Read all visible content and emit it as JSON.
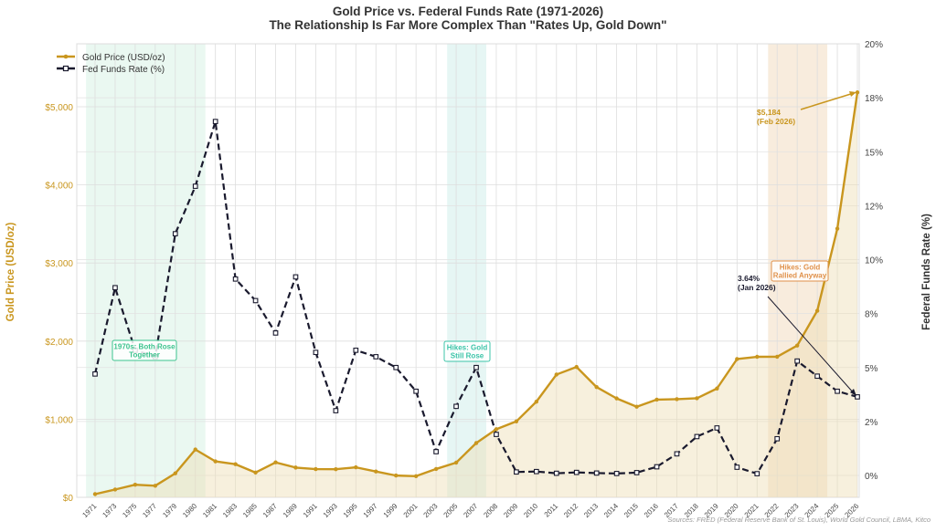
{
  "chart_data": {
    "type": "line",
    "title": "Gold Price vs. Federal Funds Rate (1971-2026)",
    "subtitle": "The Relationship Is Far More Complex Than \"Rates Up, Gold Down\"",
    "xlabel": "",
    "ylabel": "Gold Price (USD/oz)",
    "ylabel_right": "Federal Funds Rate (%)",
    "ylim": [
      0,
      5500
    ],
    "ylim_right": [
      0,
      20
    ],
    "grid": true,
    "legend_position": "upper left",
    "categories": [
      "1971",
      "1973",
      "1975",
      "1977",
      "1979",
      "1980",
      "1981",
      "1983",
      "1985",
      "1987",
      "1989",
      "1991",
      "1993",
      "1995",
      "1997",
      "1999",
      "2001",
      "2003",
      "2005",
      "2007",
      "2008",
      "2009",
      "2010",
      "2011",
      "2012",
      "2013",
      "2014",
      "2015",
      "2016",
      "2017",
      "2018",
      "2019",
      "2020",
      "2021",
      "2022",
      "2023",
      "2024",
      "2025",
      "2026"
    ],
    "series": [
      {
        "name": "Gold Price (USD/oz)",
        "axis": "left",
        "color": "#C9961E",
        "style": "solid",
        "marker": "circle",
        "values": [
          41,
          100,
          161,
          148,
          307,
          612,
          460,
          424,
          317,
          447,
          381,
          362,
          360,
          384,
          331,
          279,
          271,
          363,
          444,
          695,
          872,
          972,
          1225,
          1572,
          1669,
          1411,
          1266,
          1160,
          1251,
          1257,
          1268,
          1393,
          1770,
          1799,
          1800,
          1943,
          2388,
          3440,
          5184
        ]
      },
      {
        "name": "Fed Funds Rate (%)",
        "axis": "right",
        "color": "#1A1A2E",
        "style": "dashed",
        "marker": "square",
        "values": [
          4.7,
          8.7,
          5.8,
          5.5,
          11.2,
          13.4,
          16.4,
          9.1,
          8.1,
          6.6,
          9.2,
          5.7,
          3.0,
          5.8,
          5.5,
          5.0,
          3.9,
          1.1,
          3.2,
          5.0,
          1.9,
          0.16,
          0.18,
          0.1,
          0.14,
          0.11,
          0.09,
          0.13,
          0.4,
          1.0,
          1.8,
          2.2,
          0.38,
          0.08,
          1.7,
          5.3,
          4.6,
          3.9,
          3.64
        ]
      }
    ],
    "left_ticks": [
      "$0",
      "$1,000",
      "$2,000",
      "$3,000",
      "$4,000",
      "$5,000"
    ],
    "right_ticks": [
      "0%",
      "2%",
      "5%",
      "8%",
      "10%",
      "12%",
      "15%",
      "18%",
      "20%"
    ],
    "shaded_regions": [
      {
        "from": "1971",
        "to": "1980",
        "color": "#E3F5EC",
        "label": "1970s: Both Rose Together"
      },
      {
        "from": "2005",
        "to": "2007",
        "color": "#DDF3F0",
        "label": "Hikes: Gold Still Rose"
      },
      {
        "from": "2022",
        "to": "2024",
        "color": "#F6E6D2",
        "label": "Hikes: Gold Rallied Anyway"
      }
    ],
    "annotations": [
      {
        "text": "$5,184",
        "text2": "(Feb 2026)",
        "target": "2026 gold",
        "color": "#C9961E"
      },
      {
        "text": "3.64%",
        "text2": "(Jan 2026)",
        "target": "2026 rate",
        "color": "#1A1A2E"
      }
    ],
    "source_note": "Sources: FRED (Federal Reserve Bank of St. Louis), World Gold Council, LBMA, Kitco"
  },
  "legend": {
    "gold_label": "Gold Price (USD/oz)",
    "rate_label": "Fed Funds Rate (%)"
  },
  "colors": {
    "gold": "#C9961E",
    "rate": "#1A1A2E",
    "green_box": "#3CC48E",
    "teal_box": "#3CC4A8",
    "orange_box": "#E0914A",
    "gold_fill": "#F3E9D4"
  }
}
